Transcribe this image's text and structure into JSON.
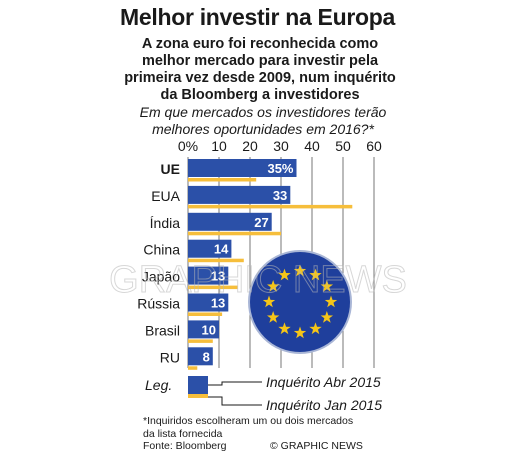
{
  "title": "Melhor investir na Europa",
  "subtitle": "A zona euro foi reconhecida como melhor mercado para investir pela primeira vez desde 2009, num inquérito da Bloomberg a investidores",
  "question": "Em que mercados os investidores terão melhores oportunidades em 2016?*",
  "footnote": "*Inquiridos escolheram um ou dois mercados da lista fornecida",
  "source": "Fonte: Bloomberg",
  "credit": "© GRAPHIC NEWS",
  "watermark": "GRAPHIC NEWS",
  "colors": {
    "primary": "#2b50a8",
    "secondary": "#f6be3b",
    "axis": "#777777",
    "flag": "#1f3f9c",
    "star": "#f5c518"
  },
  "chart_data": {
    "type": "bar",
    "orientation": "horizontal",
    "categories": [
      "UE",
      "EUA",
      "Índia",
      "China",
      "Japão",
      "Rússia",
      "Brasil",
      "RU"
    ],
    "bold_categories": [
      "UE"
    ],
    "series": [
      {
        "name": "Inquérito Abr 2015",
        "values": [
          35,
          33,
          27,
          14,
          13,
          13,
          10,
          8
        ],
        "labels": [
          "35%",
          "33",
          "27",
          "14",
          "13",
          "13",
          "10",
          "8"
        ]
      },
      {
        "name": "Inquérito Jan 2015",
        "values": [
          22,
          53,
          30,
          18,
          16,
          11,
          8,
          3
        ]
      }
    ],
    "xlim": [
      0,
      60
    ],
    "xticks": [
      "0%",
      "10",
      "20",
      "30",
      "40",
      "50",
      "60"
    ],
    "grid": true,
    "legend": {
      "label": "Leg.",
      "position": "bottom"
    }
  }
}
